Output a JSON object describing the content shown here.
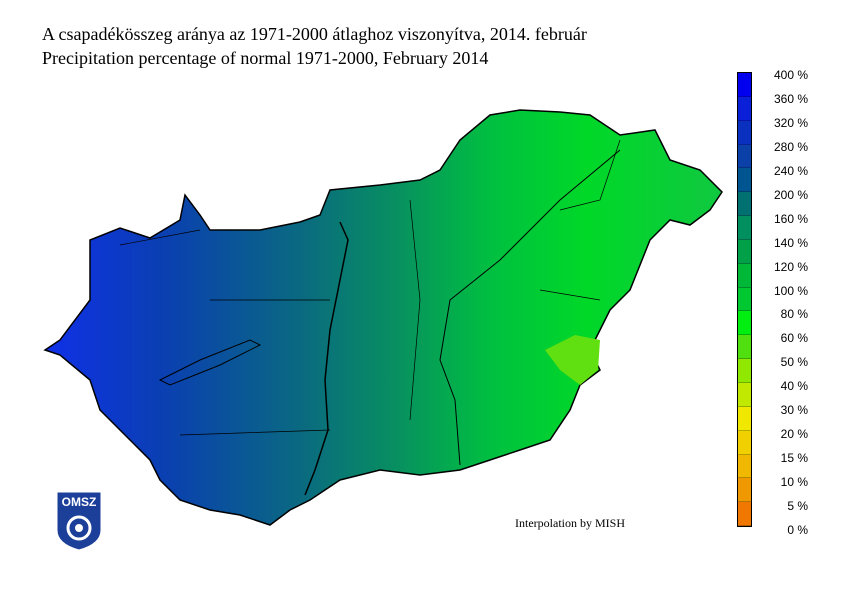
{
  "title_hu": "A csapadékösszeg aránya az 1971-2000 átlaghoz viszonyítva, 2014. február",
  "title_en": "Precipitation percentage of normal 1971-2000, February 2014",
  "credit": "Interpolation by MISH",
  "logo_text": "OMSZ",
  "legend": {
    "labels": [
      "400 %",
      "360 %",
      "320 %",
      "280 %",
      "240 %",
      "200 %",
      "160 %",
      "140 %",
      "120 %",
      "100 %",
      "80 %",
      "60 %",
      "50 %",
      "40 %",
      "30 %",
      "20 %",
      "15 %",
      "10 %",
      "5 %",
      "0 %"
    ],
    "colors": [
      "#0000ee",
      "#0a1fd8",
      "#0a30c0",
      "#0a40a8",
      "#005590",
      "#007070",
      "#009060",
      "#00a048",
      "#00b838",
      "#00c830",
      "#00ee10",
      "#50e010",
      "#90e800",
      "#c0e800",
      "#f0e800",
      "#f0d000",
      "#f0b800",
      "#f09800",
      "#f07800"
    ]
  }
}
